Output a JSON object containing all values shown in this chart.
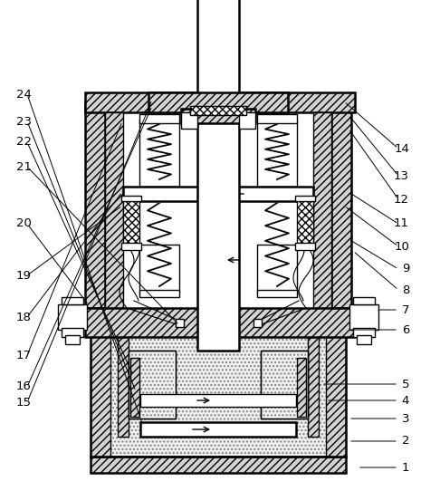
{
  "bg_color": "#ffffff",
  "line_color": "#000000",
  "figsize": [
    4.86,
    5.42
  ],
  "dpi": 100,
  "label_positions_right": {
    "1": [
      452,
      26,
      395,
      26
    ],
    "2": [
      452,
      55,
      385,
      55
    ],
    "3": [
      452,
      80,
      385,
      80
    ],
    "4": [
      452,
      100,
      360,
      100
    ],
    "5": [
      452,
      118,
      355,
      118
    ],
    "6": [
      452,
      178,
      385,
      178
    ],
    "7": [
      452,
      200,
      415,
      200
    ],
    "8": [
      452,
      222,
      390,
      265
    ],
    "9": [
      452,
      245,
      385,
      278
    ],
    "10": [
      452,
      270,
      380,
      315
    ],
    "11": [
      452,
      295,
      385,
      330
    ],
    "12": [
      452,
      322,
      385,
      400
    ],
    "13": [
      452,
      348,
      385,
      415
    ],
    "14": [
      452,
      378,
      380,
      430
    ]
  },
  "label_positions_left": {
    "15": [
      18,
      98,
      168,
      432
    ],
    "16": [
      18,
      115,
      168,
      425
    ],
    "17": [
      18,
      150,
      135,
      408
    ],
    "18": [
      18,
      192,
      135,
      330
    ],
    "19": [
      18,
      238,
      135,
      315
    ],
    "20": [
      18,
      295,
      98,
      205
    ],
    "21": [
      18,
      358,
      198,
      183
    ],
    "22": [
      18,
      385,
      147,
      128
    ],
    "23": [
      18,
      408,
      150,
      110
    ],
    "24": [
      18,
      438,
      158,
      72
    ]
  }
}
